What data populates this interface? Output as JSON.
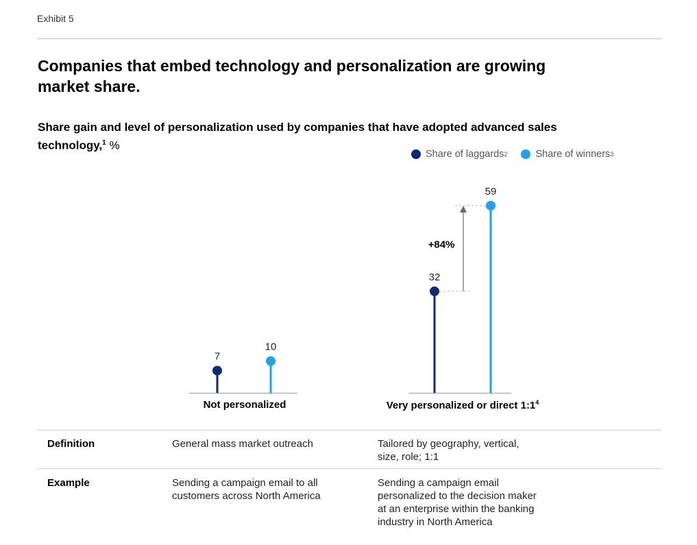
{
  "exhibit": "Exhibit 5",
  "title": "Companies that embed technology and personalization are growing market share.",
  "subtitle": {
    "text": "Share gain and level of personalization used by companies that have adopted advanced sales technology,",
    "footnote": "1",
    "unit": "%"
  },
  "legend": [
    {
      "label": "Share of laggards",
      "footnote": "2",
      "color": "#0b2a7a"
    },
    {
      "label": "Share of winners",
      "footnote": "3",
      "color": "#1aa3f0"
    }
  ],
  "chart_data": {
    "type": "lollipop",
    "categories": [
      "Not personalized",
      "Very personalized or direct 1:1"
    ],
    "category_footnotes": [
      "",
      "4"
    ],
    "series": [
      {
        "name": "Share of laggards",
        "values": [
          7,
          32
        ]
      },
      {
        "name": "Share of winners",
        "values": [
          10,
          59
        ]
      }
    ],
    "annotation": {
      "text": "+84%",
      "category": "Very personalized or direct 1:1",
      "from": 32,
      "to": 59
    },
    "ylim": [
      0,
      59
    ],
    "xlabel": "",
    "ylabel": "%"
  },
  "table": {
    "rows": [
      {
        "header": "Definition",
        "col1": [
          "General mass market outreach"
        ],
        "col2": [
          "Tailored by geography, vertical,",
          "size, role; 1:1"
        ]
      },
      {
        "header": "Example",
        "col1": [
          "Sending a campaign email to all",
          "customers across North America"
        ],
        "col2": [
          "Sending a campaign email",
          "personalized to the decision maker",
          "at an enterprise within the banking",
          "industry in North America"
        ]
      }
    ]
  }
}
